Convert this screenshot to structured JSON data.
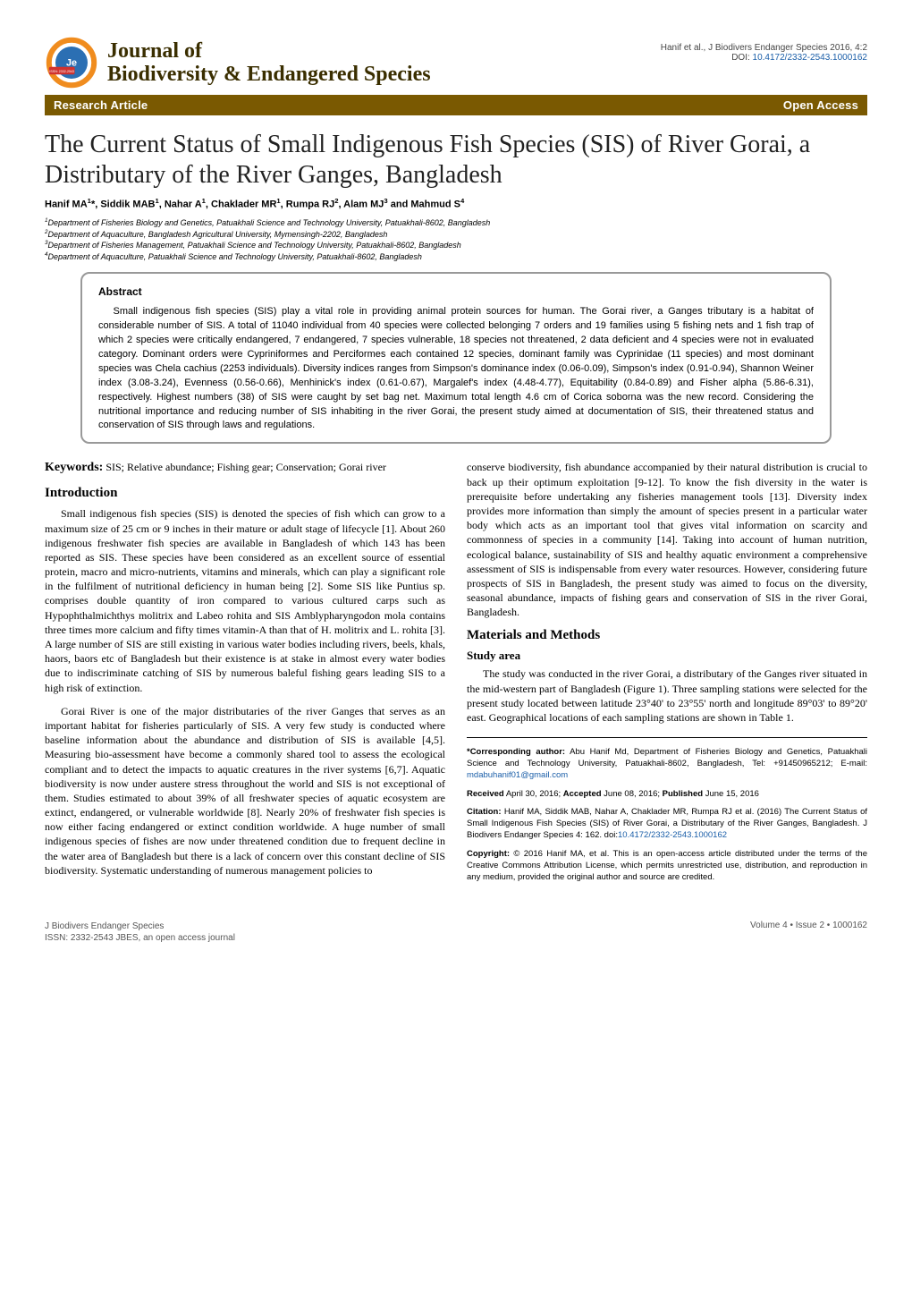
{
  "header": {
    "citation_line": "Hanif et al., J Biodivers Endanger Species 2016, 4:2",
    "doi_label": "DOI: ",
    "doi": "10.4172/2332-2543.1000162",
    "journal_line1": "Journal of",
    "journal_line2": "Biodiversity & Endangered Species",
    "logo": {
      "ring_color": "#f08c1e",
      "inner_color": "#2b6fb3",
      "issn_badge_color": "#d0322f",
      "issn_text": "ISSN: 2332-2543"
    }
  },
  "bar": {
    "left": "Research Article",
    "right": "Open Access",
    "background": "#7a5901",
    "text_color": "#ffffff"
  },
  "title": "The Current Status of Small Indigenous Fish Species (SIS) of River Gorai, a Distributary of the River Ganges, Bangladesh",
  "authors_html": "Hanif MA<sup>1</sup>*, Siddik MAB<sup>1</sup>, Nahar A<sup>1</sup>, Chaklader MR<sup>1</sup>, Rumpa RJ<sup>2</sup>, Alam MJ<sup>3</sup> and Mahmud S<sup>4</sup>",
  "affiliations": [
    "1Department of Fisheries Biology and Genetics, Patuakhali Science and Technology University, Patuakhali-8602, Bangladesh",
    "2Department of Aquaculture, Bangladesh Agricultural University, Mymensingh-2202, Bangladesh",
    "3Department of Fisheries Management, Patuakhali Science and Technology University, Patuakhali-8602, Bangladesh",
    "4Department of Aquaculture, Patuakhali Science and Technology University, Patuakhali-8602, Bangladesh"
  ],
  "abstract": {
    "heading": "Abstract",
    "body": "Small indigenous fish species (SIS) play a vital role in providing animal protein sources for human. The Gorai river, a Ganges tributary is a habitat of considerable number of SIS. A total of 11040 individual from 40 species were collected belonging 7 orders and 19 families using 5 fishing nets and 1 fish trap of which 2 species were critically endangered, 7 endangered, 7 species vulnerable, 18 species not threatened, 2 data deficient and 4 species were not in evaluated category. Dominant orders were Cypriniformes and Perciformes each contained 12 species, dominant family was Cyprinidae (11 species) and most dominant species was Chela cachius (2253 individuals). Diversity indices ranges from Simpson's dominance index (0.06-0.09), Simpson's index (0.91-0.94), Shannon Weiner index (3.08-3.24), Evenness (0.56-0.66), Menhinick's index (0.61-0.67), Margalef's index (4.48-4.77), Equitability (0.84-0.89) and Fisher alpha (5.86-6.31), respectively. Highest numbers (38) of SIS were caught by set bag net. Maximum total length 4.6 cm of Corica soborna was the new record. Considering the nutritional importance and reducing number of SIS inhabiting in the river Gorai, the present study aimed at documentation of SIS, their threatened status and conservation of SIS through laws and regulations."
  },
  "keywords": {
    "label": "Keywords:",
    "text": " SIS; Relative abundance; Fishing gear; Conservation; Gorai river"
  },
  "sections": {
    "intro_heading": "Introduction",
    "intro_paragraphs": [
      "Small indigenous fish species (SIS) is denoted the species of fish which can grow to a maximum size of 25 cm or 9 inches in their mature or adult stage of lifecycle [1]. About 260 indigenous freshwater fish species are available in Bangladesh of which 143 has been reported as SIS. These species have been considered as an excellent source of essential protein, macro and micro-nutrients, vitamins and minerals, which can play a significant role in the fulfilment of nutritional deficiency in human being [2]. Some SIS like Puntius sp. comprises double quantity of iron compared to various cultured carps such as Hypophthalmichthys molitrix and Labeo rohita and SIS Amblypharyngodon mola contains three times more calcium and fifty times vitamin-A than that of H. molitrix and L. rohita [3]. A large number of SIS are still existing in various water bodies including rivers, beels, khals, haors, baors etc of Bangladesh but their existence is at stake in almost every water bodies due to indiscriminate catching of SIS by numerous baleful fishing gears leading SIS to a high risk of extinction.",
      "Gorai River is one of the major distributaries of the river Ganges that serves as an important habitat for fisheries particularly of SIS. A very few study is conducted where baseline information about the abundance and distribution of SIS is available [4,5]. Measuring bio-assessment have become a commonly shared tool to assess the ecological compliant and to detect the impacts to aquatic creatures in the river systems [6,7]. Aquatic biodiversity is now under austere stress throughout the world and SIS is not exceptional of them. Studies estimated to about 39% of all freshwater species of aquatic ecosystem are extinct, endangered, or vulnerable worldwide [8]. Nearly 20% of freshwater fish species is now either facing endangered or extinct condition worldwide. A huge number of small indigenous species of fishes are now under threatened condition due to frequent decline in the water area of Bangladesh but there is a lack of concern over this constant decline of SIS biodiversity. Systematic understanding of numerous management policies to"
    ],
    "right_intro_continuation": "conserve biodiversity, fish abundance accompanied by their natural distribution is crucial to back up their optimum exploitation [9-12]. To know the fish diversity in the water is prerequisite before undertaking any fisheries management tools [13]. Diversity index provides more information than simply the amount of species present in a particular water body which acts as an important tool that gives vital information on scarcity and commonness of species in a community [14]. Taking into account of human nutrition, ecological balance, sustainability of SIS and healthy aquatic environment a comprehensive assessment of SIS is indispensable from every water resources. However, considering future prospects of SIS in Bangladesh, the present study was aimed to focus on the diversity, seasonal abundance, impacts of fishing gears and conservation of SIS in the river Gorai, Bangladesh.",
    "mm_heading": "Materials and Methods",
    "study_area_heading": "Study area",
    "study_area_text": "The study was conducted in the river Gorai, a distributary of the Ganges river situated in the mid-western part of Bangladesh (Figure 1). Three sampling stations were selected for the present study located between latitude 23°40' to 23°55' north and longitude 89°03' to 89°20' east. Geographical locations of each sampling stations are shown in Table 1."
  },
  "corresponding": {
    "label": "*Corresponding author:",
    "text": " Abu Hanif Md, Department of Fisheries Biology and Genetics, Patuakhali Science and Technology University, Patuakhali-8602, Bangladesh, Tel: +91450965212; E-mail: ",
    "email": "mdabuhanif01@gmail.com"
  },
  "dates": {
    "received_label": "Received",
    "received": " April 30, 2016; ",
    "accepted_label": "Accepted",
    "accepted": " June 08, 2016; ",
    "published_label": "Published",
    "published": " June 15, 2016"
  },
  "citation_footer": {
    "label": "Citation:",
    "text": " Hanif MA, Siddik MAB, Nahar A, Chaklader MR, Rumpa RJ et al. (2016) The Current Status of Small Indigenous Fish Species (SIS) of River Gorai, a Distributary of the River Ganges, Bangladesh. J Biodivers Endanger Species 4: 162. doi:",
    "doi": "10.4172/2332-2543.1000162"
  },
  "copyright": {
    "label": "Copyright:",
    "text": " © 2016 Hanif MA, et al. This is an open-access article distributed under the terms of the Creative Commons Attribution License, which permits unrestricted use, distribution, and reproduction in any medium, provided the original author and source are credited."
  },
  "footer": {
    "left_line1": "J Biodivers Endanger Species",
    "left_line2": "ISSN: 2332-2543 JBES, an open access journal",
    "right": "Volume 4 • Issue 2 • 1000162"
  },
  "colors": {
    "link": "#1a5ea8",
    "heading": "#000000",
    "abstract_border": "#999999"
  }
}
